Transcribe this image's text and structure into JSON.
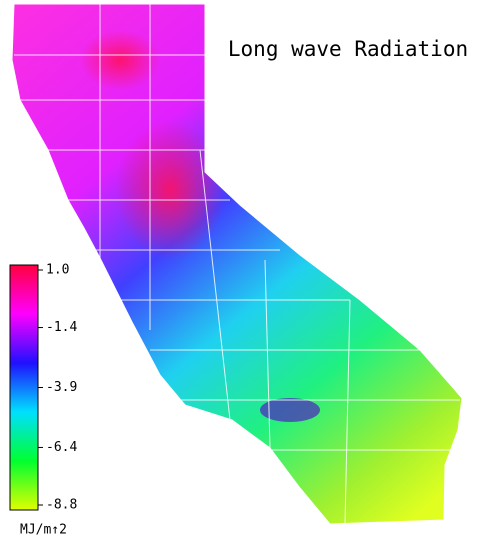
{
  "title": "Long wave Radiation",
  "colorbar": {
    "lim": [
      -8.8,
      1.0
    ],
    "ticks": [
      {
        "value": 1.0,
        "label": "1.0"
      },
      -1.4,
      -3.9,
      -6.4,
      -8.8
    ],
    "colors": [
      "#ff0040",
      "#ff00ff",
      "#2010ff",
      "#00e0ff",
      "#00ff30",
      "#e0ff00"
    ],
    "unit": "MJ/m↑2"
  }
}
